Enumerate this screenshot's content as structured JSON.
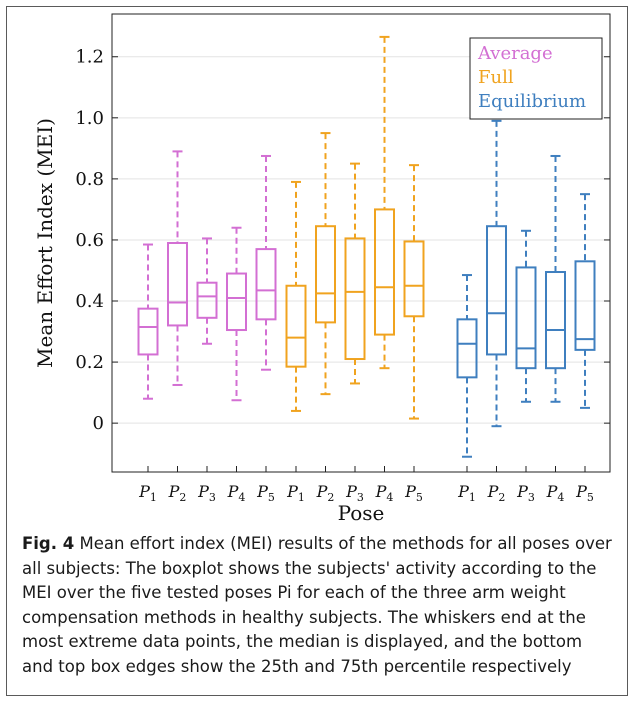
{
  "chart_data": {
    "type": "boxplot",
    "xlabel": "Pose",
    "ylabel": "Mean Effort Index (MEI)",
    "ylim": [
      -0.16,
      1.34
    ],
    "yticks": [
      0,
      0.2,
      0.4,
      0.6,
      0.8,
      1.0,
      1.2
    ],
    "ytick_labels": [
      "0",
      "0.2",
      "0.4",
      "0.6",
      "0.8",
      "1.0",
      "1.2"
    ],
    "grid": true,
    "legend_position": "top-right",
    "pose_labels": [
      "P1",
      "P2",
      "P3",
      "P4",
      "P5"
    ],
    "series": [
      {
        "name": "Average",
        "color": "#d36fd3",
        "boxes": [
          {
            "pose": "P1",
            "whisker_low": 0.08,
            "q1": 0.225,
            "median": 0.315,
            "q3": 0.375,
            "whisker_high": 0.585
          },
          {
            "pose": "P2",
            "whisker_low": 0.125,
            "q1": 0.32,
            "median": 0.395,
            "q3": 0.59,
            "whisker_high": 0.89
          },
          {
            "pose": "P3",
            "whisker_low": 0.26,
            "q1": 0.345,
            "median": 0.415,
            "q3": 0.46,
            "whisker_high": 0.605
          },
          {
            "pose": "P4",
            "whisker_low": 0.075,
            "q1": 0.305,
            "median": 0.41,
            "q3": 0.49,
            "whisker_high": 0.64
          },
          {
            "pose": "P5",
            "whisker_low": 0.175,
            "q1": 0.34,
            "median": 0.435,
            "q3": 0.57,
            "whisker_high": 0.875
          }
        ]
      },
      {
        "name": "Full",
        "color": "#f0a31f",
        "boxes": [
          {
            "pose": "P1",
            "whisker_low": 0.04,
            "q1": 0.185,
            "median": 0.28,
            "q3": 0.45,
            "whisker_high": 0.79
          },
          {
            "pose": "P2",
            "whisker_low": 0.095,
            "q1": 0.33,
            "median": 0.425,
            "q3": 0.645,
            "whisker_high": 0.95
          },
          {
            "pose": "P3",
            "whisker_low": 0.13,
            "q1": 0.21,
            "median": 0.43,
            "q3": 0.605,
            "whisker_high": 0.85
          },
          {
            "pose": "P4",
            "whisker_low": 0.18,
            "q1": 0.29,
            "median": 0.445,
            "q3": 0.7,
            "whisker_high": 1.265
          },
          {
            "pose": "P5",
            "whisker_low": 0.015,
            "q1": 0.35,
            "median": 0.45,
            "q3": 0.595,
            "whisker_high": 0.845
          }
        ]
      },
      {
        "name": "Equilibrium",
        "color": "#3f7fbf",
        "boxes": [
          {
            "pose": "P1",
            "whisker_low": -0.11,
            "q1": 0.15,
            "median": 0.26,
            "q3": 0.34,
            "whisker_high": 0.485
          },
          {
            "pose": "P2",
            "whisker_low": -0.01,
            "q1": 0.225,
            "median": 0.36,
            "q3": 0.645,
            "whisker_high": 0.99
          },
          {
            "pose": "P3",
            "whisker_low": 0.07,
            "q1": 0.18,
            "median": 0.245,
            "q3": 0.51,
            "whisker_high": 0.63
          },
          {
            "pose": "P4",
            "whisker_low": 0.07,
            "q1": 0.18,
            "median": 0.305,
            "q3": 0.495,
            "whisker_high": 0.875
          },
          {
            "pose": "P5",
            "whisker_low": 0.05,
            "q1": 0.24,
            "median": 0.275,
            "q3": 0.53,
            "whisker_high": 0.75
          }
        ]
      }
    ]
  },
  "caption": {
    "fig_label": "Fig. 4",
    "text": "Mean effort index (MEI) results of the methods for all poses over all subjects: The boxplot shows the subjects' activity according to the MEI over the five tested poses Pi for each of the three arm weight compensation methods in healthy subjects. The whiskers end at the most extreme data points, the median is displayed, and the bottom and top box edges show the 25th and 75th percentile respectively"
  }
}
